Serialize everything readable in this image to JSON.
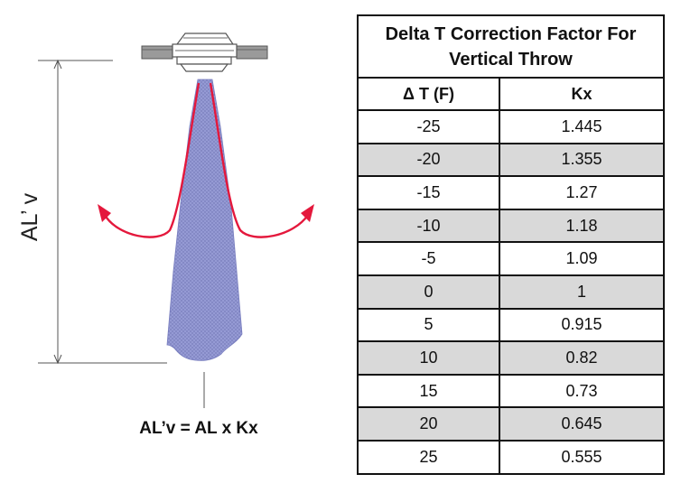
{
  "diagram": {
    "dimension_label": "AL’ v",
    "formula": "AL’v = AL x Kx",
    "colors": {
      "plume": "#7f86c9",
      "arrows": "#e4183c",
      "lines": "#444444"
    }
  },
  "table": {
    "title_line1": "Delta T Correction Factor For",
    "title_line2": "Vertical Throw",
    "col_delta_t": "Δ T (F)",
    "col_kx": "Kx",
    "rows": [
      {
        "delta_t": "-25",
        "kx": "1.445"
      },
      {
        "delta_t": "-20",
        "kx": "1.355"
      },
      {
        "delta_t": "-15",
        "kx": "1.27"
      },
      {
        "delta_t": "-10",
        "kx": "1.18"
      },
      {
        "delta_t": "-5",
        "kx": "1.09"
      },
      {
        "delta_t": "0",
        "kx": "1"
      },
      {
        "delta_t": "5",
        "kx": "0.915"
      },
      {
        "delta_t": "10",
        "kx": "0.82"
      },
      {
        "delta_t": "15",
        "kx": "0.73"
      },
      {
        "delta_t": "20",
        "kx": "0.645"
      },
      {
        "delta_t": "25",
        "kx": "0.555"
      }
    ],
    "shade_color": "#d9d9d9"
  }
}
